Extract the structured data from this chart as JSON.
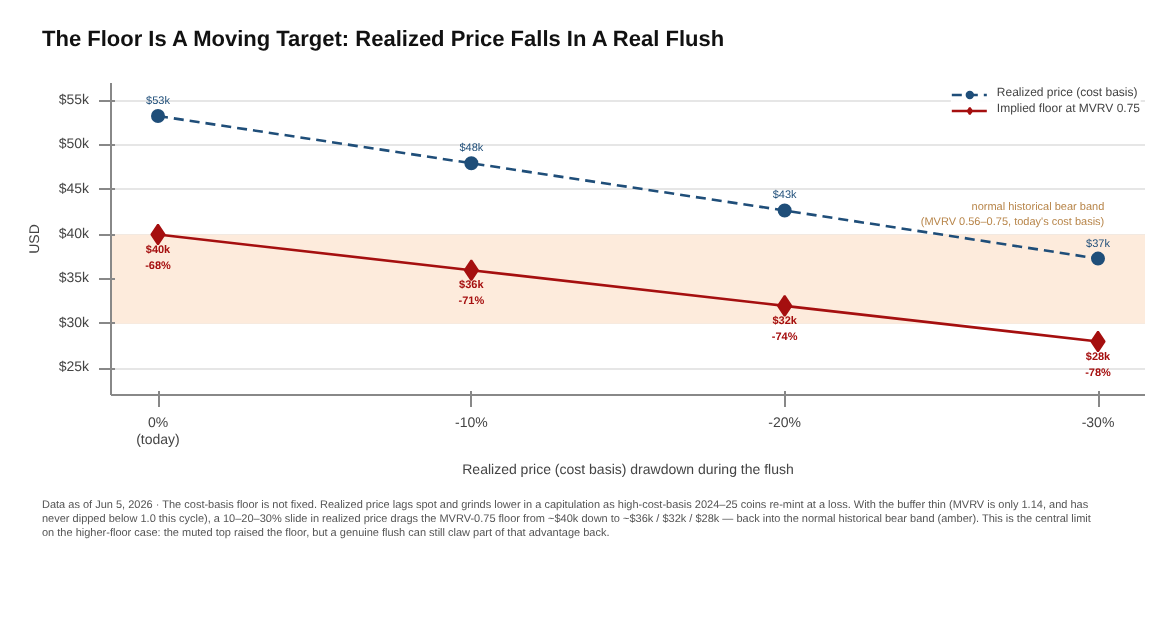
{
  "chart_data": {
    "type": "line",
    "title": "The Floor Is A Moving Target: Realized Price Falls In A Real Flush",
    "xlabel": "Realized price (cost basis) drawdown during the flush",
    "ylabel": "USD",
    "categories": [
      "0%\n(today)",
      "-10%",
      "-20%",
      "-30%"
    ],
    "series": [
      {
        "name": "Realized price (cost basis)",
        "color": "#1f4e79",
        "values": [
          53.3,
          48,
          42.7,
          37.3
        ],
        "marker": "circle",
        "line_style": "dashed",
        "value_labels": [
          "$53k",
          "$48k",
          "$43k",
          "$37k"
        ]
      },
      {
        "name": "Implied floor at MVRV 0.75",
        "color": "#a50f0f",
        "values": [
          40,
          36,
          32,
          28
        ],
        "marker": "diamond",
        "line_style": "solid",
        "value_labels": [
          "$40k",
          "$36k",
          "$32k",
          "$28k"
        ]
      }
    ],
    "ylim": [
      22,
      57
    ],
    "yticks": [
      {
        "value": 25,
        "label": "$25k"
      },
      {
        "value": 30,
        "label": "$30k"
      },
      {
        "value": 35,
        "label": "$35k"
      },
      {
        "value": 40,
        "label": "$40k"
      },
      {
        "value": 45,
        "label": "$45k"
      },
      {
        "value": 50,
        "label": "$50k"
      },
      {
        "value": 55,
        "label": "$55k"
      }
    ],
    "bands": [
      {
        "axis": "y",
        "from": 30,
        "to": 40,
        "label": "normal historical bear band\n(MVRV 0.56–0.75, today's cost basis)",
        "color": "#fdebdc"
      }
    ],
    "grid": "y",
    "legend": "top right",
    "annotations": [
      {
        "text": "-68%",
        "x": "0%\n(today)",
        "y": 40
      },
      {
        "text": "-71%",
        "x": "-10%",
        "y": 36
      },
      {
        "text": "-74%",
        "x": "-20%",
        "y": 32
      },
      {
        "text": "-78%",
        "x": "-30%",
        "y": 28
      },
      "Data as of Jun 5, 2026 · The cost-basis floor is not fixed. Realized price lags spot and grinds lower in a capitulation as high-cost-basis 2024–25 coins re-mint at a loss. With the buffer thin (MVRV is only 1.14, and has never dipped below 1.0 this cycle), a 10–20–30% slide in realized price drags the MVRV-0.75 floor from ~$40k down to ~$36k / $32k / $28k — back into the normal historical bear band (amber). This is the central limit on the higher-floor case: the muted top raised the floor, but a genuine flush can still claw part of that advantage back."
    ]
  }
}
